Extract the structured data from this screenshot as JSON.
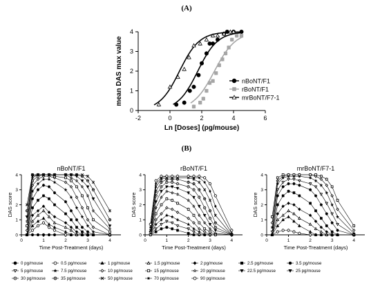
{
  "panel_a_label": "(A)",
  "panel_b_label": "(B)",
  "chart_data": [
    {
      "type": "scatter",
      "title": "",
      "xlabel": "Ln [Doses] (pg/mouse)",
      "ylabel": "mean DAS max value",
      "xlim": [
        -2,
        6
      ],
      "ylim": [
        0,
        4
      ],
      "xticks": [
        -2,
        0,
        2,
        4,
        6
      ],
      "yticks": [
        0,
        1,
        2,
        3,
        4
      ],
      "legend_position": "right",
      "series": [
        {
          "name": "nBoNT/F1",
          "marker": "filled-circle",
          "color": "#000000",
          "points": [
            [
              0.4,
              0.3
            ],
            [
              0.9,
              0.4
            ],
            [
              1.25,
              1.0
            ],
            [
              1.5,
              1.2
            ],
            [
              1.8,
              1.8
            ],
            [
              2.0,
              2.4
            ],
            [
              2.3,
              2.9
            ],
            [
              2.5,
              3.4
            ],
            [
              2.7,
              3.4
            ],
            [
              3.0,
              3.6
            ],
            [
              3.4,
              3.9
            ],
            [
              3.6,
              4.0
            ],
            [
              4.0,
              4.0
            ],
            [
              4.5,
              4.0
            ]
          ],
          "fit": {
            "bottom": 0,
            "top": 4,
            "ec50": 1.75,
            "slope": 1.6
          }
        },
        {
          "name": "rBoNT/F1",
          "marker": "filled-square",
          "color": "#a6a6a6",
          "points": [
            [
              1.5,
              0.2
            ],
            [
              1.9,
              0.4
            ],
            [
              2.1,
              0.6
            ],
            [
              2.3,
              1.0
            ],
            [
              2.5,
              1.4
            ],
            [
              2.7,
              1.5
            ],
            [
              2.9,
              1.9
            ],
            [
              3.1,
              2.3
            ],
            [
              3.3,
              2.6
            ],
            [
              3.5,
              2.9
            ],
            [
              3.7,
              3.2
            ],
            [
              3.9,
              3.6
            ],
            [
              4.2,
              3.8
            ],
            [
              4.5,
              3.8
            ]
          ],
          "fit": {
            "bottom": 0,
            "top": 4,
            "ec50": 2.8,
            "slope": 1.5
          }
        },
        {
          "name": "mrBoNT/F7-1",
          "marker": "open-triangle",
          "color": "#000000",
          "points": [
            [
              -0.7,
              0.3
            ],
            [
              0.0,
              1.2
            ],
            [
              0.5,
              1.7
            ],
            [
              0.9,
              2.1
            ],
            [
              1.2,
              2.7
            ],
            [
              1.5,
              3.3
            ],
            [
              1.9,
              3.4
            ],
            [
              2.3,
              3.6
            ],
            [
              2.7,
              3.8
            ],
            [
              3.0,
              3.8
            ],
            [
              3.4,
              3.9
            ],
            [
              3.8,
              4.0
            ],
            [
              4.0,
              4.0
            ]
          ],
          "fit": {
            "bottom": 0,
            "top": 4,
            "ec50": 0.6,
            "slope": 1.6
          }
        }
      ]
    },
    {
      "type": "line",
      "title": "nBoNT/F1",
      "xlabel": "Time Post-Treatment (days)",
      "ylabel": "DAS score",
      "xlim": [
        0,
        4.5
      ],
      "ylim": [
        0,
        4
      ],
      "xticks": [
        0,
        1,
        2,
        3,
        4
      ],
      "yticks": [
        0,
        1,
        2,
        3,
        4
      ],
      "x": [
        0.25,
        0.5,
        0.75,
        1.0,
        1.25,
        1.5,
        2.0,
        2.25,
        2.5,
        2.75,
        3.0,
        3.25,
        4.0
      ],
      "series": [
        {
          "dose": "0 pg/mouse",
          "values": [
            0,
            0,
            0,
            0,
            0,
            0,
            0,
            0,
            0,
            0,
            0,
            0,
            0
          ]
        },
        {
          "dose": "0.5 pg/mouse",
          "values": [
            0,
            0.3,
            0.6,
            0.8,
            0.5,
            0.3,
            0,
            0,
            0,
            0,
            0,
            0,
            0
          ]
        },
        {
          "dose": "1 pg/mouse",
          "values": [
            0,
            0.6,
            0.9,
            1.1,
            0.7,
            0.5,
            0.2,
            0,
            0,
            0,
            0,
            0,
            0
          ]
        },
        {
          "dose": "1.5 pg/mouse",
          "values": [
            0,
            0.9,
            1.3,
            1.6,
            1.2,
            0.8,
            0.5,
            0.3,
            0,
            0,
            0,
            0,
            0
          ]
        },
        {
          "dose": "2 pg/mouse",
          "values": [
            0,
            1.3,
            1.6,
            1.9,
            1.5,
            1.2,
            0.8,
            0.5,
            0.2,
            0,
            0,
            0,
            0
          ]
        },
        {
          "dose": "2.5 pg/mouse",
          "values": [
            0,
            1.8,
            2.3,
            2.6,
            2.4,
            2.0,
            1.4,
            1.0,
            0.5,
            0.2,
            0,
            0,
            0
          ]
        },
        {
          "dose": "3.5 pg/mouse",
          "values": [
            0,
            2.4,
            3.0,
            3.3,
            3.2,
            2.8,
            2.2,
            1.6,
            1.0,
            0.5,
            0.2,
            0,
            0
          ]
        },
        {
          "dose": "7.5 pg/mouse",
          "values": [
            0,
            2.9,
            3.4,
            3.7,
            3.7,
            3.5,
            3.0,
            2.5,
            1.8,
            1.2,
            0.6,
            0.2,
            0
          ]
        },
        {
          "dose": "10 pg/mouse",
          "values": [
            0.3,
            3.3,
            3.7,
            3.9,
            3.9,
            3.8,
            3.5,
            3.2,
            2.5,
            1.8,
            1.0,
            0.5,
            0
          ]
        },
        {
          "dose": "15 pg/mouse",
          "values": [
            0.6,
            3.6,
            3.9,
            4.0,
            4.0,
            3.9,
            3.8,
            3.6,
            3.2,
            2.6,
            1.8,
            1.0,
            0.2
          ]
        },
        {
          "dose": "20 pg/mouse",
          "values": [
            0.9,
            3.8,
            4.0,
            4.0,
            4.0,
            4.0,
            4.0,
            3.8,
            3.6,
            3.2,
            2.6,
            1.6,
            0.4
          ]
        },
        {
          "dose": "25 pg/mouse",
          "values": [
            1.2,
            3.9,
            4.0,
            4.0,
            4.0,
            4.0,
            4.0,
            4.0,
            3.9,
            3.6,
            3.2,
            2.4,
            0.6
          ]
        },
        {
          "dose": "35 pg/mouse",
          "values": [
            1.6,
            4.0,
            4.0,
            4.0,
            4.0,
            4.0,
            4.0,
            4.0,
            4.0,
            3.9,
            3.6,
            3.0,
            1.0
          ]
        },
        {
          "dose": "50 pg/mouse",
          "values": [
            2.0,
            4.0,
            4.0,
            4.0,
            4.0,
            4.0,
            4.0,
            4.0,
            4.0,
            4.0,
            3.9,
            3.5,
            1.6
          ]
        }
      ]
    },
    {
      "type": "line",
      "title": "rBoNT/F1",
      "xlabel": "Time Post-Treatment (days)",
      "ylabel": "DAS score",
      "xlim": [
        0,
        4.5
      ],
      "ylim": [
        0,
        4
      ],
      "xticks": [
        0,
        1,
        2,
        3,
        4
      ],
      "yticks": [
        0,
        1,
        2,
        3,
        4
      ],
      "x": [
        0.25,
        0.5,
        0.75,
        1.0,
        1.25,
        1.5,
        2.0,
        2.25,
        2.5,
        2.75,
        3.0,
        3.25,
        4.0
      ],
      "series": [
        {
          "dose": "2.5 pg/mouse",
          "values": [
            0,
            0.2,
            0.4,
            0.5,
            0.4,
            0.3,
            0.1,
            0,
            0,
            0,
            0,
            0,
            0
          ]
        },
        {
          "dose": "5 pg/mouse",
          "values": [
            0,
            0.4,
            0.7,
            0.9,
            0.8,
            0.6,
            0.4,
            0.2,
            0,
            0,
            0,
            0,
            0
          ]
        },
        {
          "dose": "7.5 pg/mouse",
          "values": [
            0,
            0.7,
            1.0,
            1.3,
            1.2,
            1.0,
            0.7,
            0.4,
            0.2,
            0,
            0,
            0,
            0
          ]
        },
        {
          "dose": "10 pg/mouse",
          "values": [
            0,
            1.0,
            1.4,
            1.8,
            1.7,
            1.5,
            1.1,
            0.8,
            0.4,
            0.2,
            0,
            0,
            0
          ]
        },
        {
          "dose": "15 pg/mouse",
          "values": [
            0,
            1.4,
            2.0,
            2.4,
            2.3,
            2.1,
            1.7,
            1.3,
            0.8,
            0.4,
            0.2,
            0,
            0
          ]
        },
        {
          "dose": "20 pg/mouse",
          "values": [
            0,
            1.8,
            2.5,
            2.9,
            2.8,
            2.7,
            2.3,
            1.9,
            1.3,
            0.8,
            0.4,
            0.1,
            0
          ]
        },
        {
          "dose": "25 pg/mouse",
          "values": [
            0,
            2.2,
            2.9,
            3.2,
            3.2,
            3.1,
            2.8,
            2.5,
            1.9,
            1.3,
            0.7,
            0.3,
            0
          ]
        },
        {
          "dose": "30 pg/mouse",
          "values": [
            0,
            2.6,
            3.2,
            3.5,
            3.5,
            3.4,
            3.2,
            3.0,
            2.5,
            1.8,
            1.1,
            0.5,
            0
          ]
        },
        {
          "dose": "35 pg/mouse",
          "values": [
            0.2,
            2.9,
            3.5,
            3.7,
            3.7,
            3.7,
            3.5,
            3.4,
            3.0,
            2.4,
            1.6,
            0.8,
            0
          ]
        },
        {
          "dose": "50 pg/mouse",
          "values": [
            0.3,
            3.2,
            3.7,
            3.8,
            3.8,
            3.8,
            3.8,
            3.7,
            3.5,
            3.0,
            2.3,
            1.3,
            0
          ]
        },
        {
          "dose": "70 pg/mouse",
          "values": [
            0.5,
            3.4,
            3.8,
            3.9,
            3.9,
            3.9,
            3.9,
            3.8,
            3.8,
            3.5,
            2.9,
            1.9,
            0.1
          ]
        },
        {
          "dose": "90 pg/mouse",
          "values": [
            0.7,
            3.6,
            3.9,
            3.9,
            3.9,
            3.9,
            3.9,
            3.9,
            3.9,
            3.8,
            3.4,
            2.6,
            0.3
          ]
        }
      ]
    },
    {
      "type": "line",
      "title": "mrBoNT/F7-1",
      "xlabel": "Time Post-Treatment (days)",
      "ylabel": "DAS score",
      "xlim": [
        0,
        4.5
      ],
      "ylim": [
        0,
        4
      ],
      "xticks": [
        0,
        1,
        2,
        3,
        4
      ],
      "yticks": [
        0,
        1,
        2,
        3,
        4
      ],
      "x": [
        0.25,
        0.5,
        0.75,
        1.0,
        1.25,
        1.5,
        2.0,
        2.25,
        2.5,
        2.75,
        3.0,
        3.25,
        4.0
      ],
      "series": [
        {
          "dose": "0.5 pg/mouse",
          "values": [
            0,
            0.2,
            0.3,
            0.3,
            0.2,
            0.1,
            0,
            0,
            0,
            0,
            0,
            0,
            0
          ]
        },
        {
          "dose": "1 pg/mouse",
          "values": [
            0,
            0.6,
            1.0,
            1.2,
            0.9,
            0.6,
            0.2,
            0,
            0,
            0,
            0,
            0,
            0
          ]
        },
        {
          "dose": "1.5 pg/mouse",
          "values": [
            0,
            1.0,
            1.3,
            1.6,
            1.4,
            1.1,
            0.7,
            0.4,
            0.2,
            0,
            0,
            0,
            0
          ]
        },
        {
          "dose": "2 pg/mouse",
          "values": [
            0,
            1.4,
            1.9,
            2.1,
            2.0,
            1.7,
            1.3,
            0.9,
            0.5,
            0.2,
            0,
            0,
            0
          ]
        },
        {
          "dose": "2.5 pg/mouse",
          "values": [
            0,
            2.0,
            2.6,
            2.9,
            2.8,
            2.6,
            2.1,
            1.6,
            1.1,
            0.6,
            0.2,
            0,
            0
          ]
        },
        {
          "dose": "3.5 pg/mouse",
          "values": [
            0,
            2.6,
            3.2,
            3.4,
            3.4,
            3.3,
            3.0,
            2.6,
            2.0,
            1.4,
            0.8,
            0.3,
            0
          ]
        },
        {
          "dose": "5 pg/mouse",
          "values": [
            0.2,
            3.0,
            3.5,
            3.7,
            3.7,
            3.6,
            3.4,
            3.2,
            2.7,
            2.1,
            1.4,
            0.7,
            0
          ]
        },
        {
          "dose": "7.5 pg/mouse",
          "values": [
            0.5,
            3.4,
            3.8,
            3.9,
            3.9,
            3.9,
            3.8,
            3.6,
            3.3,
            2.8,
            2.0,
            1.2,
            0.1
          ]
        },
        {
          "dose": "10 pg/mouse",
          "values": [
            0.8,
            3.6,
            3.9,
            4.0,
            4.0,
            4.0,
            4.0,
            3.9,
            3.7,
            3.3,
            2.6,
            1.7,
            0.3
          ]
        },
        {
          "dose": "15 pg/mouse",
          "values": [
            1.2,
            3.8,
            4.0,
            4.0,
            4.0,
            4.0,
            4.0,
            4.0,
            3.9,
            3.7,
            3.2,
            2.3,
            0.6
          ]
        }
      ]
    }
  ],
  "legend_b": [
    {
      "label": "0 pg/mouse",
      "marker": "filled-circle"
    },
    {
      "label": "0.5 pg/mouse",
      "marker": "open-circle"
    },
    {
      "label": "1 pg/mouse",
      "marker": "filled-triangle"
    },
    {
      "label": "1.5 pg/mouse",
      "marker": "open-triangle"
    },
    {
      "label": "2 pg/mouse",
      "marker": "filled-diamond"
    },
    {
      "label": "2.5 pg/mouse",
      "marker": "filled-square"
    },
    {
      "label": "3.5 pg/mouse",
      "marker": "filled-hexagon"
    },
    {
      "label": "5 pg/mouse",
      "marker": "open-down-triangle"
    },
    {
      "label": "7.5 pg/mouse",
      "marker": "filled-star"
    },
    {
      "label": "10 pg/mouse",
      "marker": "open-diamond"
    },
    {
      "label": "15 pg/mouse",
      "marker": "open-square"
    },
    {
      "label": "20 pg/mouse",
      "marker": "open-star"
    },
    {
      "label": "22.5 pg/mouse",
      "marker": "filled-down-triangle"
    },
    {
      "label": "25 pg/mouse",
      "marker": "filled-down-triangle"
    },
    {
      "label": "30 pg/mouse",
      "marker": "circle-dot"
    },
    {
      "label": "35 pg/mouse",
      "marker": "circle-plus"
    },
    {
      "label": "50 pg/mouse",
      "marker": "cross"
    },
    {
      "label": "70 pg/mouse",
      "marker": "asterisk"
    },
    {
      "label": "90 pg/mouse",
      "marker": "circle-ring"
    }
  ]
}
